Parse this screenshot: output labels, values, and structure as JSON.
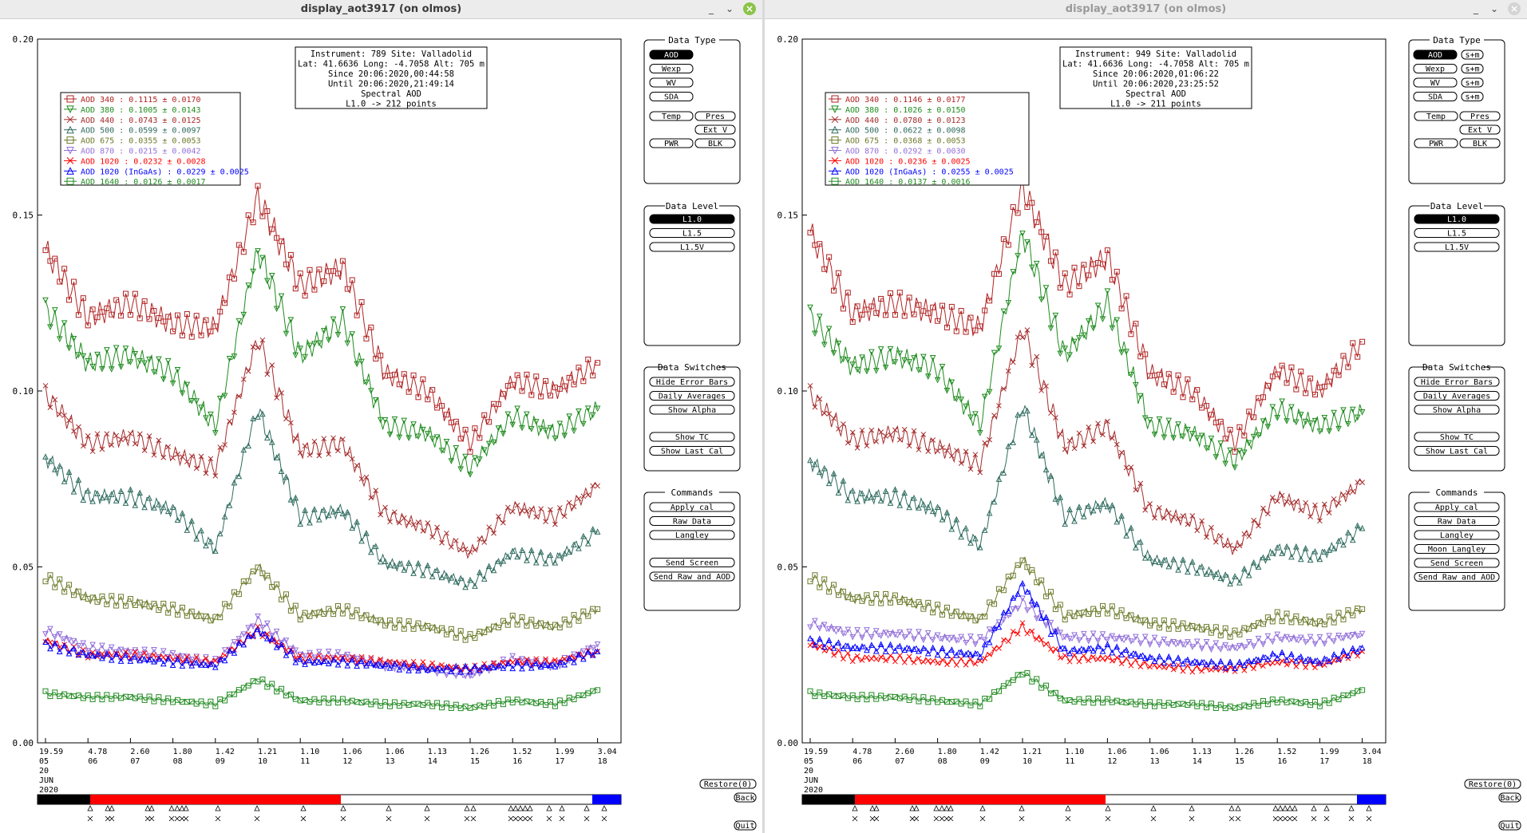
{
  "windows": [
    {
      "title": "display_aot3917 (on olmos)",
      "info": [
        "Instrument: 789 Site: Valladolid",
        "Lat: 41.6636 Long: -4.7058 Alt: 705 m",
        "Since 20:06:2020,00:44:58",
        "Until 20:06:2020,21:49:14",
        "Spectral AOD",
        "L1.0 -> 212 points"
      ],
      "legend": [
        {
          "label": "AOD 340",
          "value": ": 0.1115 ± 0.0170",
          "color": "#b22222"
        },
        {
          "label": "AOD 380",
          "value": ": 0.1005 ± 0.0143",
          "color": "#1e8b1e"
        },
        {
          "label": "AOD 440",
          "value": ": 0.0743 ± 0.0125",
          "color": "#a52a2a"
        },
        {
          "label": "AOD 500",
          "value": ": 0.0599 ± 0.0097",
          "color": "#2e6b5e"
        },
        {
          "label": "AOD 675",
          "value": ": 0.0355 ± 0.0053",
          "color": "#6b7a2a"
        },
        {
          "label": "AOD 870",
          "value": ": 0.0215 ± 0.0042",
          "color": "#9370db"
        },
        {
          "label": "AOD 1020",
          "value": ": 0.0232 ± 0.0028",
          "color": "#ff0000"
        },
        {
          "label": "AOD 1020 (InGaAs)",
          "value": ": 0.0229 ± 0.0025",
          "color": "#0000ff"
        },
        {
          "label": "AOD 1640",
          "value": ": 0.0126 ± 0.0017",
          "color": "#228b22"
        }
      ],
      "commands": [
        "Apply cal",
        "Raw Data",
        "Langley",
        "Send Screen",
        "Send Raw and AOD"
      ],
      "data_type_side": false,
      "legend_extra": false
    },
    {
      "title": "display_aot3917 (on olmos)",
      "info": [
        "Instrument: 949 Site: Valladolid",
        "Lat: 41.6636 Long: -4.7058 Alt: 705 m",
        "Since 20:06:2020,01:06:22",
        "Until 20:06:2020,23:25:52",
        "Spectral AOD",
        "L1.0 -> 211 points"
      ],
      "legend": [
        {
          "label": "AOD 340",
          "value": ": 0.1146 ± 0.0177",
          "color": "#b22222"
        },
        {
          "label": "AOD 380",
          "value": ": 0.1026 ± 0.0150",
          "color": "#1e8b1e"
        },
        {
          "label": "AOD 440",
          "value": ": 0.0780 ± 0.0123",
          "color": "#a52a2a"
        },
        {
          "label": "AOD 500",
          "value": ": 0.0622 ± 0.0098",
          "color": "#2e6b5e"
        },
        {
          "label": "AOD 675",
          "value": ": 0.0368 ± 0.0053",
          "color": "#6b7a2a"
        },
        {
          "label": "AOD 870",
          "value": ": 0.0292 ± 0.0030",
          "color": "#9370db"
        },
        {
          "label": "AOD 1020",
          "value": ": 0.0236 ± 0.0025",
          "color": "#ff0000"
        },
        {
          "label": "AOD 1020 (InGaAs)",
          "value": ": 0.0255 ± 0.0025",
          "color": "#0000ff"
        },
        {
          "label": "AOD 1640",
          "value": ": 0.0137 ± 0.0016",
          "color": "#228b22"
        }
      ],
      "commands": [
        "Apply cal",
        "Raw Data",
        "Langley",
        "Moon Langley",
        "Send Screen",
        "Send Raw and AOD"
      ],
      "data_type_side": true,
      "legend_extra": true
    }
  ],
  "panels": {
    "data_type_title": "Data Type",
    "data_type_buttons": [
      "AOD",
      "Wexp",
      "WV",
      "SDA"
    ],
    "side_label": "s+m",
    "temp": "Temp",
    "pres": "Pres",
    "ext_v": "Ext V",
    "pwr": "PWR",
    "blk": "BLK",
    "data_level_title": "Data Level",
    "levels": [
      "L1.0",
      "L1.5",
      "L1.5V"
    ],
    "switches_title": "Data Switches",
    "switches": [
      "Hide Error Bars",
      "Daily Averages",
      "Show Alpha",
      "Show TC",
      "Show Last Cal"
    ],
    "commands_title": "Commands",
    "restore": "Restore(0)",
    "back": "Back",
    "quit": "Quit"
  },
  "axes": {
    "y_ticks": [
      "0.20",
      "0.15",
      "0.10",
      "0.05",
      "0.00"
    ],
    "x_ticks_top": [
      "19.59",
      "4.78",
      "2.60",
      "1.80",
      "1.42",
      "1.21",
      "1.10",
      "1.06",
      "1.06",
      "1.13",
      "1.26",
      "1.52",
      "1.99",
      "3.04"
    ],
    "x_ticks_hour": [
      "05",
      "06",
      "07",
      "08",
      "09",
      "10",
      "11",
      "12",
      "13",
      "14",
      "15",
      "16",
      "17",
      "18"
    ],
    "date_day": "20",
    "date_month": "JUN",
    "date_year": "2020"
  },
  "chart_data": [
    {
      "type": "line",
      "xlabel_hours": [
        5,
        6,
        7,
        8,
        9,
        10,
        11,
        12,
        13,
        14,
        15,
        16,
        17,
        18
      ],
      "ylim": [
        0,
        0.2
      ],
      "series": [
        {
          "name": "AOD 340",
          "values": [
            0.14,
            0.121,
            0.125,
            0.119,
            0.118,
            0.155,
            0.13,
            0.135,
            0.105,
            0.1,
            0.085,
            0.103,
            0.1,
            0.108
          ]
        },
        {
          "name": "AOD 380",
          "values": [
            0.123,
            0.108,
            0.11,
            0.105,
            0.09,
            0.14,
            0.11,
            0.12,
            0.09,
            0.088,
            0.078,
            0.093,
            0.088,
            0.095
          ]
        },
        {
          "name": "AOD 440",
          "values": [
            0.099,
            0.085,
            0.087,
            0.082,
            0.078,
            0.115,
            0.083,
            0.085,
            0.065,
            0.061,
            0.054,
            0.067,
            0.064,
            0.073
          ]
        },
        {
          "name": "AOD 500",
          "values": [
            0.081,
            0.07,
            0.07,
            0.066,
            0.055,
            0.095,
            0.064,
            0.066,
            0.051,
            0.049,
            0.045,
            0.054,
            0.052,
            0.06
          ]
        },
        {
          "name": "AOD 675",
          "values": [
            0.047,
            0.041,
            0.04,
            0.038,
            0.035,
            0.05,
            0.036,
            0.038,
            0.034,
            0.033,
            0.03,
            0.035,
            0.033,
            0.038
          ]
        },
        {
          "name": "AOD 870",
          "values": [
            0.032,
            0.027,
            0.026,
            0.025,
            0.023,
            0.035,
            0.025,
            0.025,
            0.022,
            0.021,
            0.019,
            0.024,
            0.022,
            0.028
          ]
        },
        {
          "name": "AOD 1020",
          "values": [
            0.029,
            0.025,
            0.025,
            0.024,
            0.023,
            0.032,
            0.024,
            0.024,
            0.023,
            0.022,
            0.021,
            0.023,
            0.023,
            0.026
          ]
        },
        {
          "name": "AOD 1020 (InGaAs)",
          "values": [
            0.028,
            0.025,
            0.024,
            0.023,
            0.022,
            0.032,
            0.023,
            0.023,
            0.022,
            0.021,
            0.021,
            0.022,
            0.022,
            0.026
          ]
        },
        {
          "name": "AOD 1640",
          "values": [
            0.014,
            0.013,
            0.013,
            0.012,
            0.011,
            0.018,
            0.012,
            0.012,
            0.011,
            0.011,
            0.01,
            0.012,
            0.011,
            0.015
          ]
        }
      ]
    },
    {
      "type": "line",
      "xlabel_hours": [
        5,
        6,
        7,
        8,
        9,
        10,
        11,
        12,
        13,
        14,
        15,
        16,
        17,
        18
      ],
      "ylim": [
        0,
        0.2
      ],
      "series": [
        {
          "name": "AOD 340",
          "values": [
            0.145,
            0.122,
            0.125,
            0.122,
            0.118,
            0.158,
            0.13,
            0.138,
            0.105,
            0.1,
            0.085,
            0.106,
            0.1,
            0.114
          ]
        },
        {
          "name": "AOD 380",
          "values": [
            0.121,
            0.107,
            0.11,
            0.106,
            0.09,
            0.145,
            0.11,
            0.125,
            0.09,
            0.088,
            0.08,
            0.095,
            0.09,
            0.094
          ]
        },
        {
          "name": "AOD 440",
          "values": [
            0.099,
            0.086,
            0.088,
            0.084,
            0.079,
            0.118,
            0.084,
            0.09,
            0.066,
            0.063,
            0.055,
            0.07,
            0.065,
            0.074
          ]
        },
        {
          "name": "AOD 500",
          "values": [
            0.08,
            0.07,
            0.07,
            0.066,
            0.056,
            0.096,
            0.064,
            0.068,
            0.052,
            0.05,
            0.046,
            0.055,
            0.053,
            0.061
          ]
        },
        {
          "name": "AOD 675",
          "values": [
            0.047,
            0.041,
            0.041,
            0.038,
            0.035,
            0.052,
            0.036,
            0.038,
            0.034,
            0.033,
            0.031,
            0.036,
            0.034,
            0.038
          ]
        },
        {
          "name": "AOD 870",
          "values": [
            0.034,
            0.031,
            0.031,
            0.03,
            0.029,
            0.04,
            0.03,
            0.03,
            0.029,
            0.028,
            0.027,
            0.03,
            0.029,
            0.031
          ]
        },
        {
          "name": "AOD 1020",
          "values": [
            0.028,
            0.024,
            0.024,
            0.023,
            0.023,
            0.033,
            0.024,
            0.024,
            0.022,
            0.021,
            0.021,
            0.023,
            0.022,
            0.026
          ]
        },
        {
          "name": "AOD 1020 (InGaAs)",
          "values": [
            0.029,
            0.027,
            0.027,
            0.026,
            0.025,
            0.045,
            0.026,
            0.027,
            0.024,
            0.023,
            0.022,
            0.025,
            0.023,
            0.027
          ]
        },
        {
          "name": "AOD 1640",
          "values": [
            0.014,
            0.013,
            0.013,
            0.012,
            0.011,
            0.02,
            0.012,
            0.012,
            0.011,
            0.011,
            0.01,
            0.012,
            0.011,
            0.015
          ]
        }
      ]
    }
  ]
}
